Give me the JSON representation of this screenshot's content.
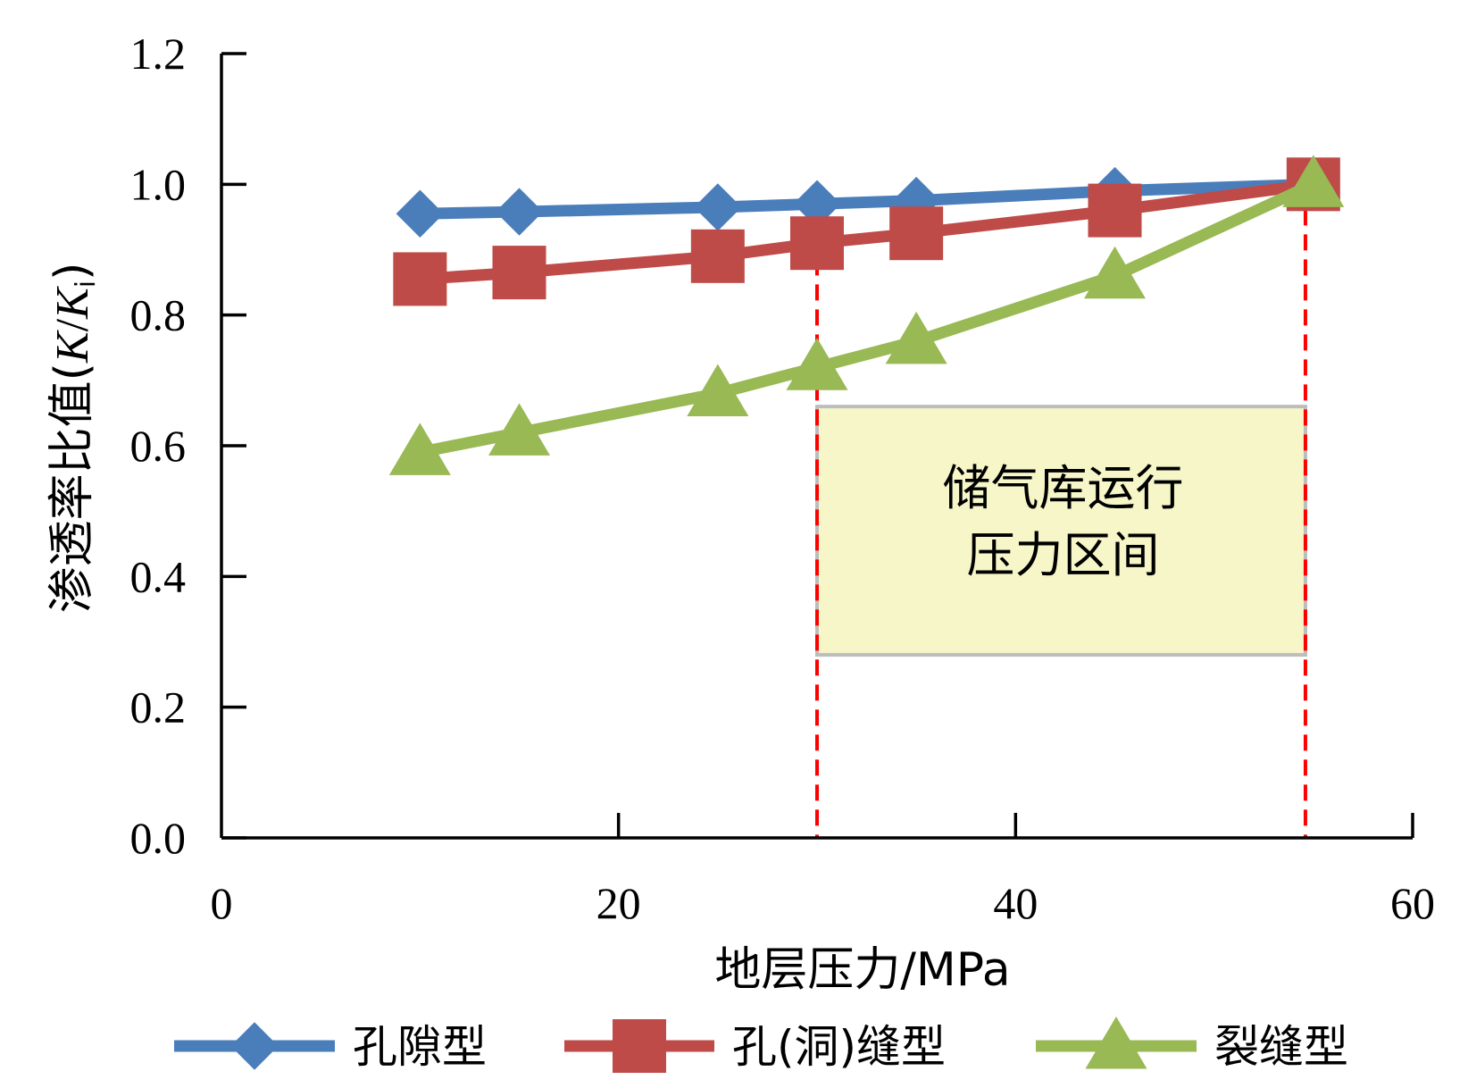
{
  "chart_data": {
    "type": "line",
    "xlabel": "地层压力/MPa",
    "ylabel": "渗透率比值(K/Ki)",
    "ylabel_parts": {
      "main": "渗透率比值(",
      "k": "K",
      "slash": "/",
      "k2": "K",
      "sub": "i",
      "close": ")"
    },
    "xlim": [
      0,
      60
    ],
    "ylim": [
      0,
      1.2
    ],
    "x_ticks": [
      0,
      20,
      40,
      60
    ],
    "x_tick_labels": [
      "0",
      "20",
      "40",
      "60"
    ],
    "y_ticks": [
      0,
      0.2,
      0.4,
      0.6,
      0.8,
      1.0,
      1.2
    ],
    "y_tick_labels": [
      "0.0",
      "0.2",
      "0.4",
      "0.6",
      "0.8",
      "1.0",
      "1.2"
    ],
    "grid": false,
    "legend_position": "bottom",
    "series": [
      {
        "name": "孔隙型",
        "color": "#4a7ebb",
        "marker": "diamond",
        "x": [
          10,
          15,
          25,
          30,
          35,
          45,
          55
        ],
        "y": [
          0.955,
          0.958,
          0.965,
          0.97,
          0.975,
          0.99,
          1.0
        ]
      },
      {
        "name": "孔(洞)缝型",
        "color": "#be4b48",
        "marker": "square",
        "x": [
          10,
          15,
          25,
          30,
          35,
          45,
          55
        ],
        "y": [
          0.855,
          0.865,
          0.89,
          0.91,
          0.925,
          0.96,
          1.0
        ]
      },
      {
        "name": "裂缝型",
        "color": "#98b954",
        "marker": "triangle",
        "x": [
          10,
          15,
          25,
          30,
          35,
          45,
          55
        ],
        "y": [
          0.59,
          0.62,
          0.68,
          0.72,
          0.76,
          0.86,
          1.0
        ]
      }
    ],
    "reference_lines": [
      {
        "x": 30,
        "color": "#ff0000",
        "style": "dashed"
      },
      {
        "x": 54.6,
        "color": "#ff0000",
        "style": "dashed"
      }
    ],
    "annotation": {
      "lines": [
        "储气库运行",
        "压力区间"
      ],
      "x_range": [
        30,
        54.6
      ],
      "y_range": [
        0.28,
        0.66
      ],
      "fill": "#f6f6c8",
      "border": "#bdbdbd"
    }
  }
}
